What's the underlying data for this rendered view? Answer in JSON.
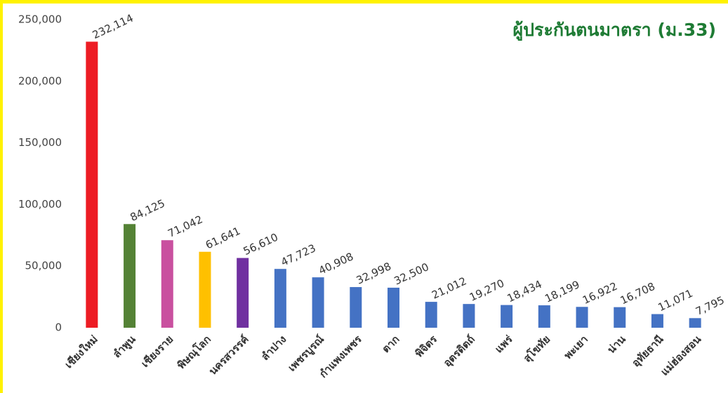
{
  "chart_data": {
    "type": "bar",
    "title": "ผู้ประกันตนมาตรา (ม.33)",
    "categories": [
      "เชียงใหม่",
      "ลำพูน",
      "เชียงราย",
      "พิษณุโลก",
      "นครสวรรค์",
      "ลำปาง",
      "เพชรบูรณ์",
      "กำแพงเพชร",
      "ตาก",
      "พิจิตร",
      "อุตรดิตถ์",
      "แพร่",
      "สุโขทัย",
      "พะเยา",
      "น่าน",
      "อุทัยธานี",
      "แม่ฮ่องสอน"
    ],
    "values": [
      232114,
      84125,
      71042,
      61641,
      56610,
      47723,
      40908,
      32998,
      32500,
      21012,
      19270,
      18434,
      18199,
      16922,
      16708,
      11071,
      7795
    ],
    "value_labels": [
      "232,114",
      "84,125",
      "71,042",
      "61,641",
      "56,610",
      "47,723",
      "40,908",
      "32,998",
      "32,500",
      "21,012",
      "19,270",
      "18,434",
      "18,199",
      "16,922",
      "16,708",
      "11,071",
      "7,795"
    ],
    "colors": [
      "#ed1c24",
      "#548235",
      "#c9509f",
      "#ffc000",
      "#7030a0",
      "#4472c4",
      "#4472c4",
      "#4472c4",
      "#4472c4",
      "#4472c4",
      "#4472c4",
      "#4472c4",
      "#4472c4",
      "#4472c4",
      "#4472c4",
      "#4472c4",
      "#4472c4"
    ],
    "ylim": [
      0,
      250000
    ],
    "yticks": [
      0,
      {
        "value": 50000,
        "label": "50,000"
      },
      {
        "value": 100000,
        "label": "100,000"
      },
      {
        "value": 150000,
        "label": "150,000"
      },
      {
        "value": 200000,
        "label": "200,000"
      },
      {
        "value": 250000,
        "label": "250,000"
      }
    ],
    "grid": false
  }
}
